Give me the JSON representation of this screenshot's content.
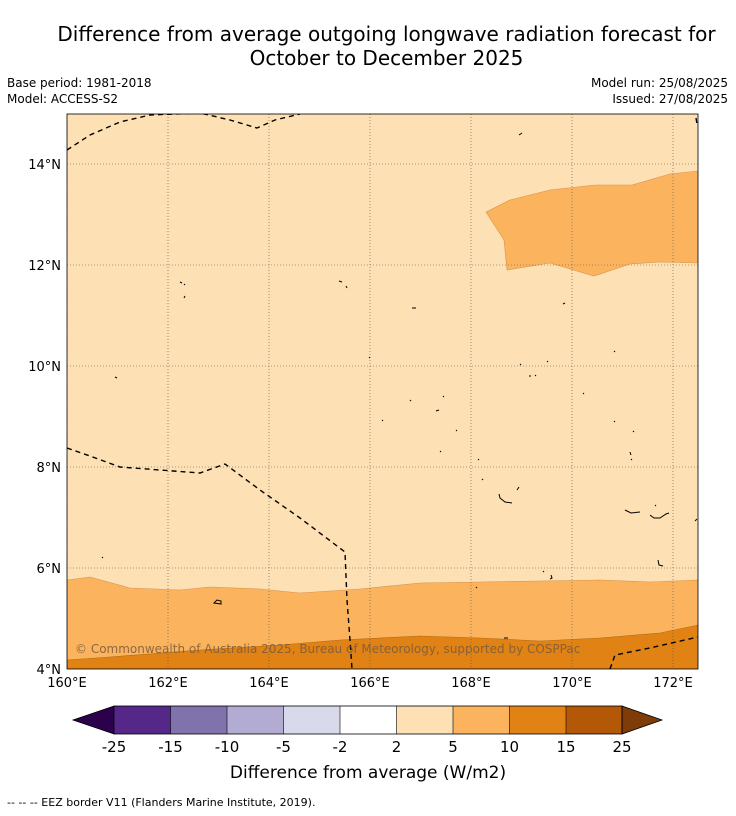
{
  "title_line1": "Difference from average outgoing longwave radiation forecast for",
  "title_line2": "October to December 2025",
  "meta": {
    "base_period": "Base period: 1981-2018",
    "model": "Model: ACCESS-S2",
    "model_run": "Model run: 25/08/2025",
    "issued": "Issued: 27/08/2025"
  },
  "map": {
    "lat_labels": [
      "14°N",
      "12°N",
      "10°N",
      "8°N",
      "6°N",
      "4°N"
    ],
    "lon_labels": [
      "160°E",
      "162°E",
      "164°E",
      "166°E",
      "168°E",
      "170°E",
      "172°E"
    ],
    "copyright": "© Commonwealth of Australia 2025, Bureau of Meteorology, supported by COSPPac"
  },
  "legend": {
    "ticks": [
      "-25",
      "-15",
      "-10",
      "-5",
      "-2",
      "2",
      "5",
      "10",
      "15",
      "25"
    ],
    "title": "Difference from average (W/m2)",
    "colors": [
      "#2d004b",
      "#542788",
      "#8073ac",
      "#b2abd2",
      "#d8daeb",
      "#ffffff",
      "#fde0b3",
      "#fbb35e",
      "#e08214",
      "#b35806",
      "#7f3b08"
    ]
  },
  "footnote": "--  --  -- EEZ border V11 (Flanders Marine Institute, 2019)."
}
